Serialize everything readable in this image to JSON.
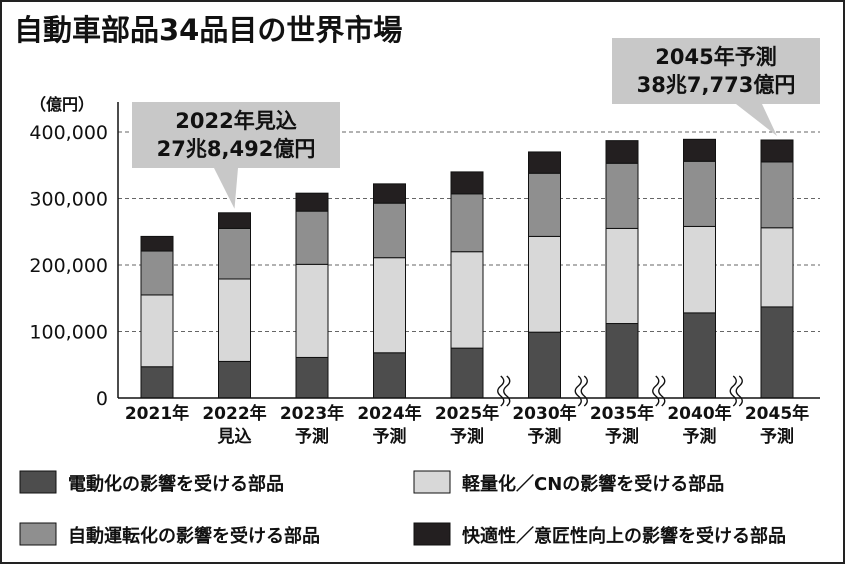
{
  "title": "自動車部品34品目の世界市場",
  "colors": {
    "electrification": "#4d4d4d",
    "lightweight_cn": "#d8d8d8",
    "autonomous": "#8f8f8f",
    "comfort": "#231f20",
    "callout_bg": "#c8c8c8",
    "grid": "#666666"
  },
  "chart_data": {
    "type": "bar",
    "stacked": true,
    "ylabel": "（億円）",
    "ylim": [
      0,
      400000
    ],
    "yticks": [
      0,
      100000,
      200000,
      300000,
      400000
    ],
    "ytick_labels": [
      "0",
      "100,000",
      "200,000",
      "300,000",
      "400,000"
    ],
    "grid": "horizontal-dashed",
    "categories": [
      [
        "2021年",
        ""
      ],
      [
        "2022年",
        "見込"
      ],
      [
        "2023年",
        "予測"
      ],
      [
        "2024年",
        "予測"
      ],
      [
        "2025年",
        "予測"
      ],
      [
        "2030年",
        "予測"
      ],
      [
        "2035年",
        "予測"
      ],
      [
        "2040年",
        "予測"
      ],
      [
        "2045年",
        "予測"
      ]
    ],
    "axis_breaks_before_index": [
      5,
      6,
      7,
      8
    ],
    "series": [
      {
        "name": "電動化の影響を受ける部品",
        "color_key": "electrification",
        "values": [
          47000,
          55000,
          61000,
          68000,
          75000,
          99000,
          112000,
          128000,
          137000
        ]
      },
      {
        "name": "軽量化／CNの影響を受ける部品",
        "color_key": "lightweight_cn",
        "values": [
          108000,
          124000,
          140000,
          143000,
          145000,
          144000,
          143000,
          130000,
          119000
        ]
      },
      {
        "name": "自動運転化の影響を受ける部品",
        "color_key": "autonomous",
        "values": [
          66000,
          76000,
          80000,
          82000,
          87000,
          95000,
          98000,
          98000,
          99000
        ]
      },
      {
        "name": "快適性／意匠性向上の影響を受ける部品",
        "color_key": "comfort",
        "values": [
          22000,
          23500,
          27000,
          29000,
          33000,
          32000,
          34000,
          33000,
          33000
        ]
      }
    ],
    "annotations": [
      {
        "category_index": 1,
        "lines": [
          "2022年見込",
          "27兆8,492億円"
        ],
        "placement": "above-left"
      },
      {
        "category_index": 8,
        "lines": [
          "2045年予測",
          "38兆7,773億円"
        ],
        "placement": "above"
      }
    ],
    "legend": {
      "placement": "bottom",
      "order": [
        "電動化の影響を受ける部品",
        "軽量化／CNの影響を受ける部品",
        "自動運転化の影響を受ける部品",
        "快適性／意匠性向上の影響を受ける部品"
      ]
    }
  }
}
